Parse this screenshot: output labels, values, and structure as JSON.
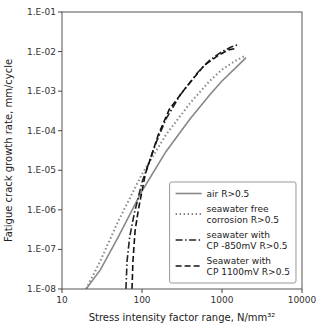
{
  "chart_data": {
    "type": "line",
    "x_label": "Stress intensity factor range, N/mm³²",
    "y_label": "Fatigue crack growth rate, mm/cycle",
    "log": true,
    "grid": false,
    "legend": "lower right",
    "xlim": [
      10,
      10000
    ],
    "xticks": [
      10,
      100,
      1000,
      10000
    ],
    "ylim": [
      1e-08,
      0.1
    ],
    "yticks": [
      {
        "value": 1e-08,
        "label": "1.E-08"
      },
      {
        "value": 1e-07,
        "label": "1.E-07"
      },
      {
        "value": 1e-06,
        "label": "1.E-06"
      },
      {
        "value": 1e-05,
        "label": "1.E-05"
      },
      {
        "value": 0.0001,
        "label": "1.E-04"
      },
      {
        "value": 0.001,
        "label": "1.E-03"
      },
      {
        "value": 0.01,
        "label": "1.E-02"
      },
      {
        "value": 0.1,
        "label": "1.E-01"
      }
    ],
    "series": [
      {
        "name": "air R>0.5",
        "color": "#888888",
        "line_style": "solid",
        "x": [
          20,
          30,
          50,
          100,
          200,
          400,
          700,
          1000,
          1500,
          2000
        ],
        "values": [
          1e-08,
          3e-08,
          2e-07,
          3e-06,
          3e-05,
          0.0002,
          0.0008,
          0.0018,
          0.004,
          0.007
        ]
      },
      {
        "name": "seawater free\ncorrosion R>0.5",
        "color": "#888888",
        "line_style": "dotted",
        "x": [
          20,
          30,
          50,
          100,
          200,
          400,
          700,
          1000,
          1500,
          2000
        ],
        "values": [
          1e-08,
          5e-08,
          5e-07,
          8e-06,
          8e-05,
          0.0005,
          0.0018,
          0.0035,
          0.006,
          0.008
        ]
      },
      {
        "name": "seawater with\nCP -850mV R>0.5",
        "color": "#222222",
        "line_style": "dashdot",
        "x": [
          63,
          65,
          70,
          80,
          100,
          150,
          200,
          300,
          500,
          700,
          1000,
          1300,
          1600
        ],
        "values": [
          1e-08,
          5e-08,
          2e-07,
          8e-07,
          5e-06,
          5e-05,
          0.0002,
          0.0008,
          0.003,
          0.006,
          0.01,
          0.013,
          0.015
        ]
      },
      {
        "name": "Seawater with\nCP 1100mV R>0.5",
        "color": "#111111",
        "line_style": "dashed",
        "x": [
          75,
          77,
          82,
          90,
          110,
          160,
          220,
          350,
          600,
          900,
          1200,
          1500
        ],
        "values": [
          1e-08,
          5e-08,
          3e-07,
          1e-06,
          8e-06,
          8e-05,
          0.00035,
          0.0012,
          0.0045,
          0.008,
          0.011,
          0.012
        ]
      }
    ]
  }
}
